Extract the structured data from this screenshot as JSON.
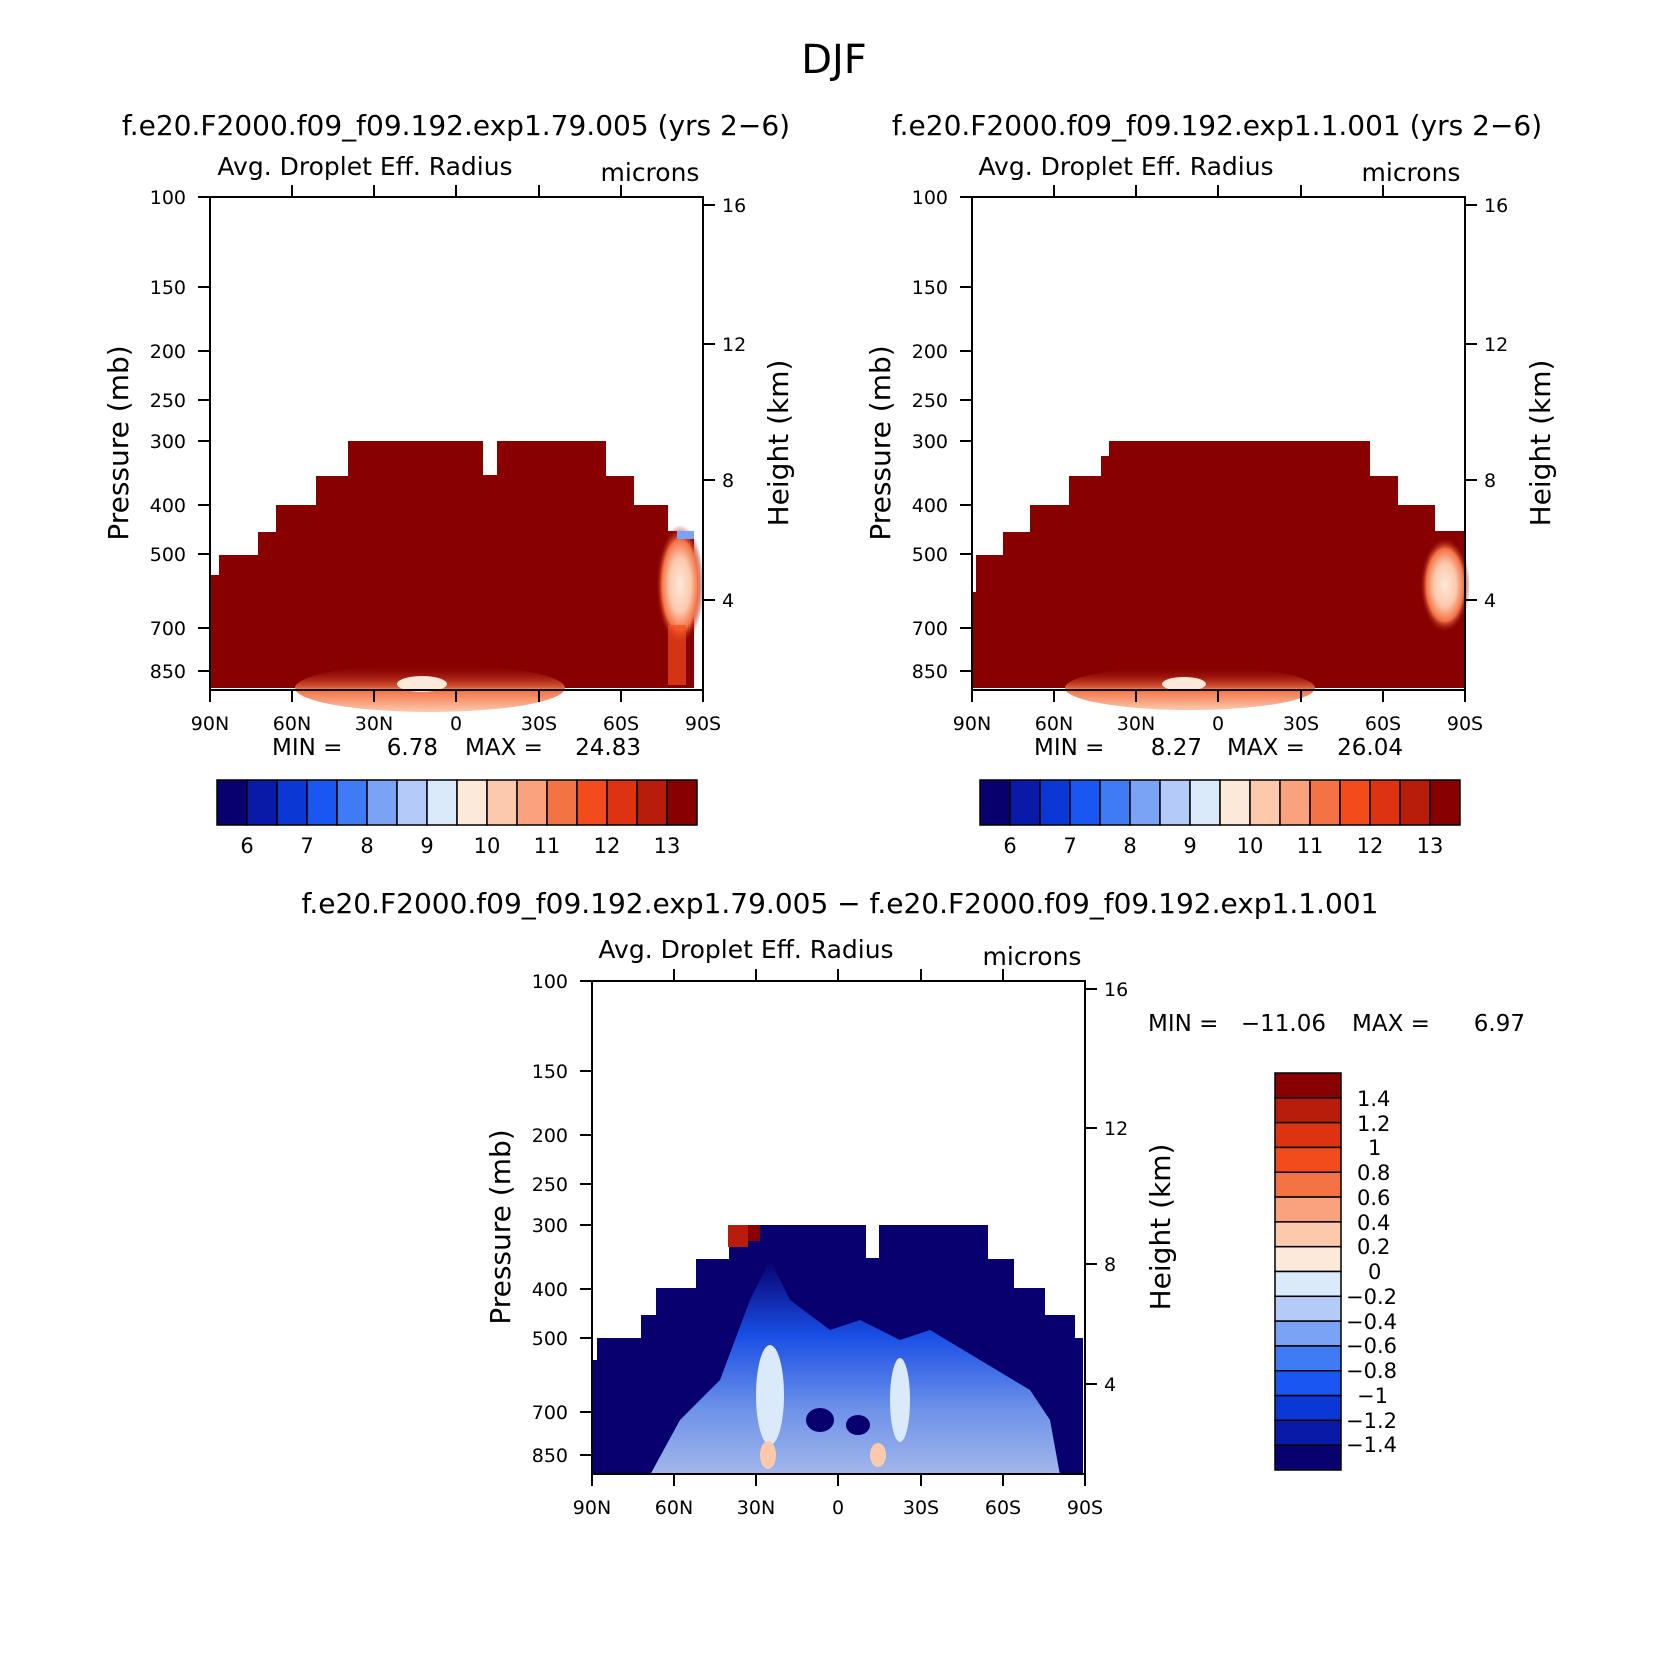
{
  "title": "DJF",
  "colors": {
    "cb_abs": [
      "#08006e",
      "#0a1aa8",
      "#0b37d5",
      "#1a57f2",
      "#3f7bf5",
      "#7aa3f6",
      "#b4cbf9",
      "#daeafa",
      "#fde9d9",
      "#fcc9ad",
      "#f9a27d",
      "#f47345",
      "#f24b1c",
      "#dd3311",
      "#b81d0c",
      "#880000"
    ],
    "cb_diff": [
      "#880000",
      "#b81d0c",
      "#dd3311",
      "#f24b1c",
      "#f47345",
      "#f9a27d",
      "#fcc9ad",
      "#fde9d9",
      "#daeafa",
      "#b4cbf9",
      "#7aa3f6",
      "#3f7bf5",
      "#1a57f2",
      "#0b37d5",
      "#0a1aa8",
      "#08006e"
    ]
  },
  "chart_data": [
    {
      "type": "heatmap",
      "case": "f.e20.F2000.f09_f09.192.exp1.79.005 (yrs 2−6)",
      "variable": "Avg. Droplet Eff. Radius",
      "units": "microns",
      "ylabel": "Pressure (mb)",
      "y2label": "Height (km)",
      "x_ticks": [
        "90N",
        "60N",
        "30N",
        "0",
        "30S",
        "60S",
        "90S"
      ],
      "y_ticks": [
        "100",
        "150",
        "200",
        "250",
        "300",
        "400",
        "500",
        "700",
        "850"
      ],
      "y2_ticks": [
        "16",
        "12",
        "8",
        "4"
      ],
      "ylim": [
        1000,
        100
      ],
      "min_label": "MIN =",
      "min": "6.78",
      "max_label": "MAX =",
      "max": "24.83",
      "colorbar_labels": [
        "6",
        "7",
        "8",
        "9",
        "10",
        "11",
        "12",
        "13"
      ]
    },
    {
      "type": "heatmap",
      "case": "f.e20.F2000.f09_f09.192.exp1.1.001 (yrs 2−6)",
      "variable": "Avg. Droplet Eff. Radius",
      "units": "microns",
      "ylabel": "Pressure (mb)",
      "y2label": "Height (km)",
      "x_ticks": [
        "90N",
        "60N",
        "30N",
        "0",
        "30S",
        "60S",
        "90S"
      ],
      "y_ticks": [
        "100",
        "150",
        "200",
        "250",
        "300",
        "400",
        "500",
        "700",
        "850"
      ],
      "y2_ticks": [
        "16",
        "12",
        "8",
        "4"
      ],
      "ylim": [
        1000,
        100
      ],
      "min_label": "MIN =",
      "min": "8.27",
      "max_label": "MAX =",
      "max": "26.04",
      "colorbar_labels": [
        "6",
        "7",
        "8",
        "9",
        "10",
        "11",
        "12",
        "13"
      ]
    },
    {
      "type": "heatmap",
      "case": "f.e20.F2000.f09_f09.192.exp1.79.005 − f.e20.F2000.f09_f09.192.exp1.1.001",
      "variable": "Avg. Droplet Eff. Radius",
      "units": "microns",
      "ylabel": "Pressure (mb)",
      "y2label": "Height (km)",
      "x_ticks": [
        "90N",
        "60N",
        "30N",
        "0",
        "30S",
        "60S",
        "90S"
      ],
      "y_ticks": [
        "100",
        "150",
        "200",
        "250",
        "300",
        "400",
        "500",
        "700",
        "850"
      ],
      "y2_ticks": [
        "16",
        "12",
        "8",
        "4"
      ],
      "ylim": [
        1000,
        100
      ],
      "min_label": "MIN =",
      "min": "−11.06",
      "max_label": "MAX =",
      "max": "6.97",
      "colorbar_labels": [
        "1.4",
        "1.2",
        "1",
        "0.8",
        "0.6",
        "0.4",
        "0.2",
        "0",
        "−0.2",
        "−0.4",
        "−0.6",
        "−0.8",
        "−1",
        "−1.2",
        "−1.4"
      ]
    }
  ]
}
